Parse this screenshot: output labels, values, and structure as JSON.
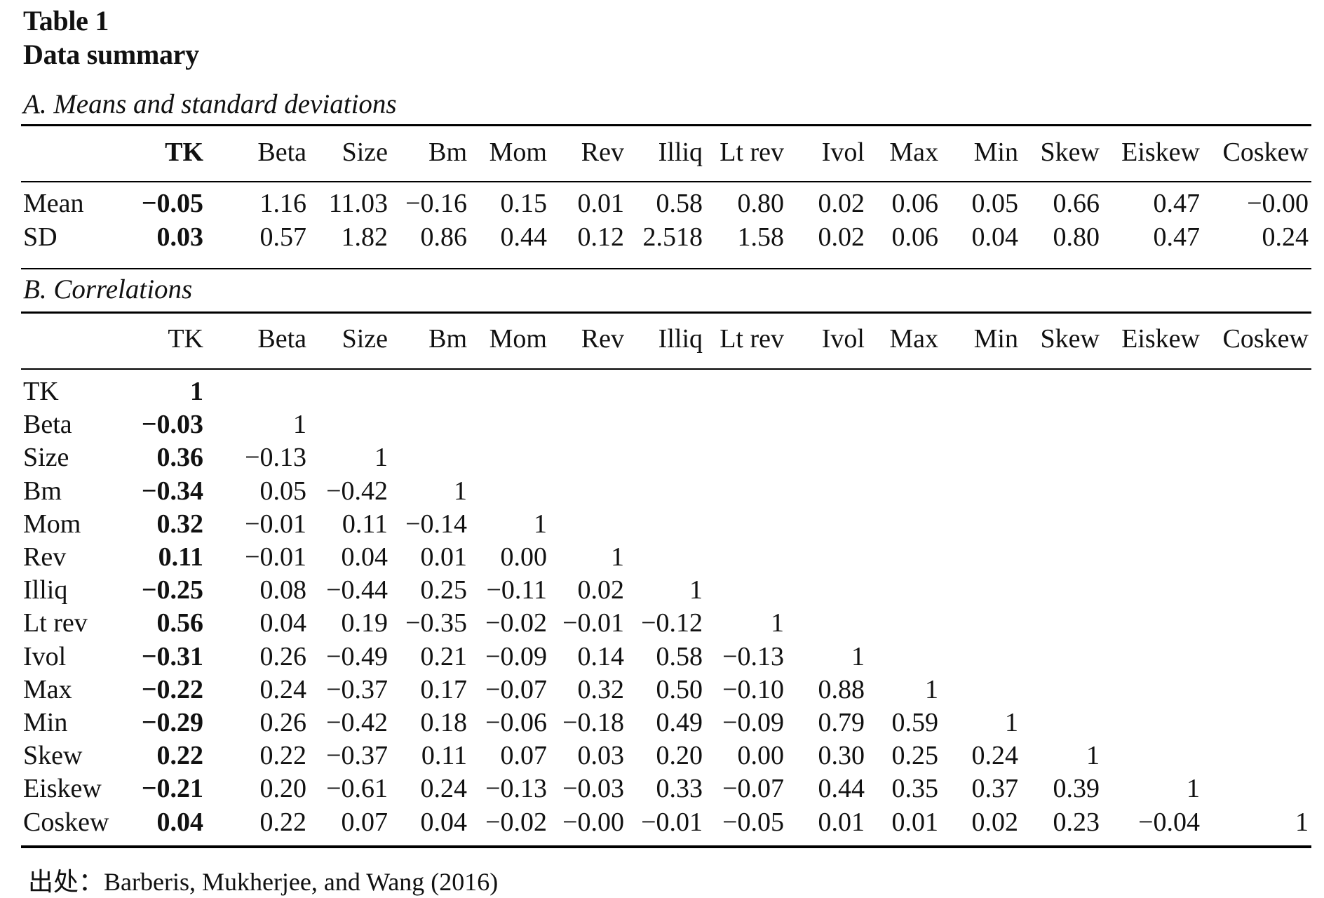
{
  "table_label": "Table 1",
  "table_title": "Data summary",
  "panel_a": {
    "title": "A. Means and standard deviations",
    "columns": [
      "TK",
      "Beta",
      "Size",
      "Bm",
      "Mom",
      "Rev",
      "Illiq",
      "Lt rev",
      "Ivol",
      "Max",
      "Min",
      "Skew",
      "Eiskew",
      "Coskew"
    ],
    "rows": [
      {
        "label": "Mean",
        "values": [
          "−0.05",
          "1.16",
          "11.03",
          "−0.16",
          "0.15",
          "0.01",
          "0.58",
          "0.80",
          "0.02",
          "0.06",
          "0.05",
          "0.66",
          "0.47",
          "−0.00"
        ]
      },
      {
        "label": "SD",
        "values": [
          "0.03",
          "0.57",
          "1.82",
          "0.86",
          "0.44",
          "0.12",
          "2.518",
          "1.58",
          "0.02",
          "0.06",
          "0.04",
          "0.80",
          "0.47",
          "0.24"
        ]
      }
    ]
  },
  "panel_b": {
    "title": "B. Correlations",
    "columns": [
      "TK",
      "Beta",
      "Size",
      "Bm",
      "Mom",
      "Rev",
      "Illiq",
      "Lt rev",
      "Ivol",
      "Max",
      "Min",
      "Skew",
      "Eiskew",
      "Coskew"
    ],
    "rows": [
      {
        "label": "TK",
        "values": [
          "1"
        ]
      },
      {
        "label": "Beta",
        "values": [
          "−0.03",
          "1"
        ]
      },
      {
        "label": "Size",
        "values": [
          "0.36",
          "−0.13",
          "1"
        ]
      },
      {
        "label": "Bm",
        "values": [
          "−0.34",
          "0.05",
          "−0.42",
          "1"
        ]
      },
      {
        "label": "Mom",
        "values": [
          "0.32",
          "−0.01",
          "0.11",
          "−0.14",
          "1"
        ]
      },
      {
        "label": "Rev",
        "values": [
          "0.11",
          "−0.01",
          "0.04",
          "0.01",
          "0.00",
          "1"
        ]
      },
      {
        "label": "Illiq",
        "values": [
          "−0.25",
          "0.08",
          "−0.44",
          "0.25",
          "−0.11",
          "0.02",
          "1"
        ]
      },
      {
        "label": "Lt rev",
        "values": [
          "0.56",
          "0.04",
          "0.19",
          "−0.35",
          "−0.02",
          "−0.01",
          "−0.12",
          "1"
        ]
      },
      {
        "label": "Ivol",
        "values": [
          "−0.31",
          "0.26",
          "−0.49",
          "0.21",
          "−0.09",
          "0.14",
          "0.58",
          "−0.13",
          "1"
        ]
      },
      {
        "label": "Max",
        "values": [
          "−0.22",
          "0.24",
          "−0.37",
          "0.17",
          "−0.07",
          "0.32",
          "0.50",
          "−0.10",
          "0.88",
          "1"
        ]
      },
      {
        "label": "Min",
        "values": [
          "−0.29",
          "0.26",
          "−0.42",
          "0.18",
          "−0.06",
          "−0.18",
          "0.49",
          "−0.09",
          "0.79",
          "0.59",
          "1"
        ]
      },
      {
        "label": "Skew",
        "values": [
          "0.22",
          "0.22",
          "−0.37",
          "0.11",
          "0.07",
          "0.03",
          "0.20",
          "0.00",
          "0.30",
          "0.25",
          "0.24",
          "1"
        ]
      },
      {
        "label": "Eiskew",
        "values": [
          "−0.21",
          "0.20",
          "−0.61",
          "0.24",
          "−0.13",
          "−0.03",
          "0.33",
          "−0.07",
          "0.44",
          "0.35",
          "0.37",
          "0.39",
          "1"
        ]
      },
      {
        "label": "Coskew",
        "values": [
          "0.04",
          "0.22",
          "0.07",
          "0.04",
          "−0.02",
          "−0.00",
          "−0.01",
          "−0.05",
          "0.01",
          "0.01",
          "0.02",
          "0.23",
          "−0.04",
          "1"
        ]
      }
    ]
  },
  "source": "出处：Barberis, Mukherjee, and Wang (2016)"
}
